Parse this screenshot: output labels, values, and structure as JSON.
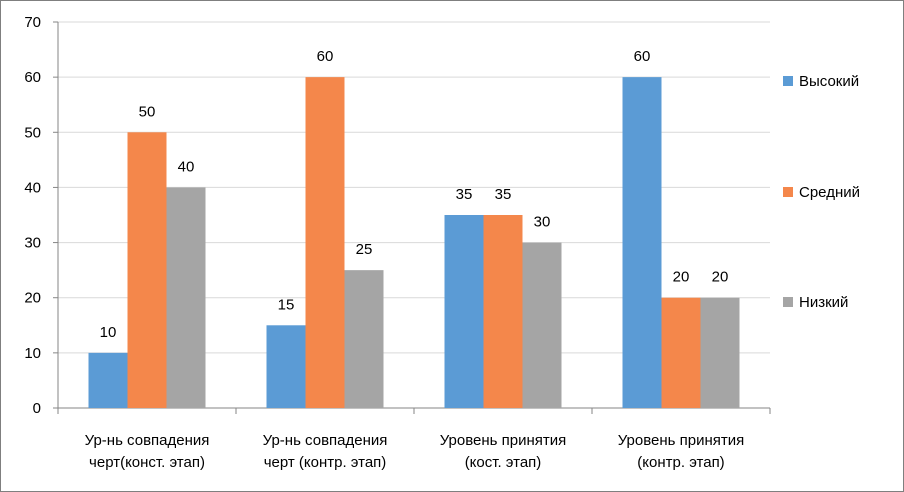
{
  "chart_data": {
    "type": "bar",
    "categories": [
      [
        "Ур-нь совпадения",
        "черт(конст. этап)"
      ],
      [
        "Ур-нь совпадения",
        "черт (контр. этап)"
      ],
      [
        "Уровень принятия",
        "(кост. этап)"
      ],
      [
        "Уровень принятия",
        "(контр. этап)"
      ]
    ],
    "series": [
      {
        "name": "Высокий",
        "color": "#5b9bd5",
        "values": [
          10,
          15,
          35,
          60
        ]
      },
      {
        "name": "Средний",
        "color": "#f4874b",
        "values": [
          50,
          60,
          35,
          20
        ]
      },
      {
        "name": "Низкий",
        "color": "#a5a5a5",
        "values": [
          40,
          25,
          30,
          20
        ]
      }
    ],
    "ylim": [
      0,
      70
    ],
    "yticks": [
      0,
      10,
      20,
      30,
      40,
      50,
      60,
      70
    ],
    "grid": true,
    "legend": "right",
    "title": "",
    "xlabel": "",
    "ylabel": ""
  }
}
